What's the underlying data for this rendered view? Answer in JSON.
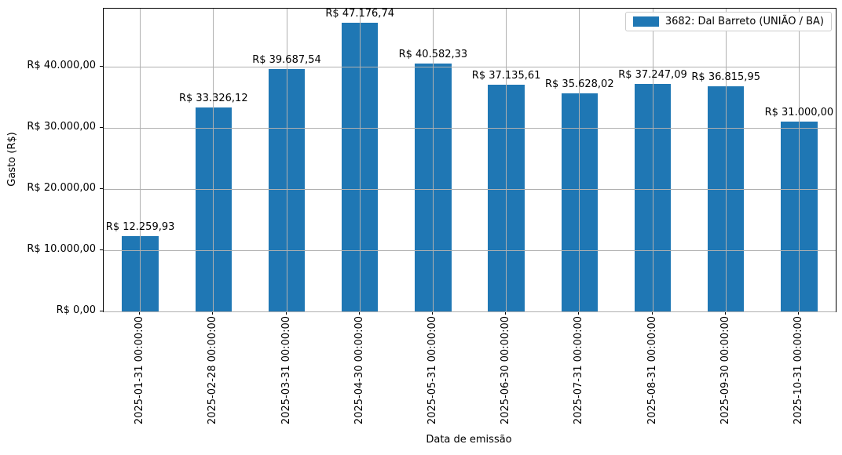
{
  "chart_data": {
    "type": "bar",
    "title": "",
    "xlabel": "Data de emissão",
    "ylabel": "Gasto (R$)",
    "categories": [
      "2025-01-31 00:00:00",
      "2025-02-28 00:00:00",
      "2025-03-31 00:00:00",
      "2025-04-30 00:00:00",
      "2025-05-31 00:00:00",
      "2025-06-30 00:00:00",
      "2025-07-31 00:00:00",
      "2025-08-31 00:00:00",
      "2025-09-30 00:00:00",
      "2025-10-31 00:00:00"
    ],
    "values": [
      12259.93,
      33326.12,
      39687.54,
      47176.74,
      40582.33,
      37135.61,
      35628.02,
      37247.09,
      36815.95,
      31000.0
    ],
    "value_labels": [
      "R$ 12.259,93",
      "R$ 33.326,12",
      "R$ 39.687,54",
      "R$ 47.176,74",
      "R$ 40.582,33",
      "R$ 37.135,61",
      "R$ 35.628,02",
      "R$ 37.247,09",
      "R$ 36.815,95",
      "R$ 31.000,00"
    ],
    "y_ticks": [
      {
        "value": 0,
        "label": "R$ 0,00"
      },
      {
        "value": 10000,
        "label": "R$ 10.000,00"
      },
      {
        "value": 20000,
        "label": "R$ 20.000,00"
      },
      {
        "value": 30000,
        "label": "R$ 30.000,00"
      },
      {
        "value": 40000,
        "label": "R$ 40.000,00"
      }
    ],
    "ylim": [
      0,
      49535.6
    ],
    "grid": true,
    "bar_color": "#1f77b4",
    "grid_color": "#b0b0b0",
    "legend": {
      "position": "top-right",
      "entries": [
        {
          "label": "3682: Dal Barreto (UNIÃO / BA)",
          "color": "#1f77b4"
        }
      ]
    }
  }
}
